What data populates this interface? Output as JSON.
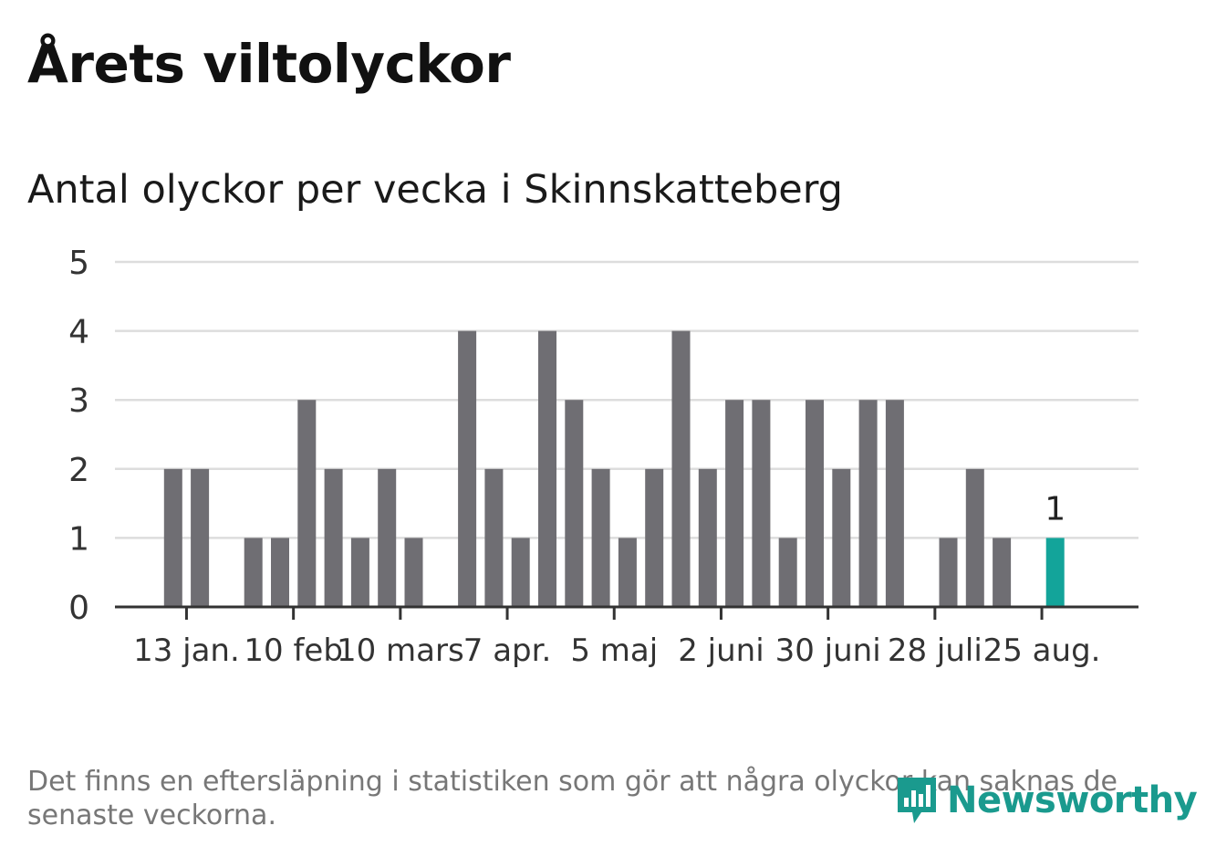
{
  "title": "Årets viltolyckor",
  "subtitle": "Antal olyckor per vecka i Skinnskatteberg",
  "footnote": "Det finns en eftersläpning i statistiken som gör att några olyckor kan saknas de senaste veckorna.",
  "logo_text": "Newsworthy",
  "colors": {
    "bar": "#6f6e73",
    "highlight": "#13a49a",
    "grid": "#dddddd",
    "axis": "#333333",
    "logo": "#1a9a8e"
  },
  "chart_data": {
    "type": "bar",
    "xlabel": "",
    "ylabel": "",
    "ylim": [
      0,
      5
    ],
    "yticks": [
      0,
      1,
      2,
      3,
      4,
      5
    ],
    "grid": true,
    "legend": "none",
    "weeks": [
      1,
      2,
      3,
      4,
      5,
      6,
      7,
      8,
      9,
      10,
      11,
      12,
      13,
      14,
      15,
      16,
      17,
      18,
      19,
      20,
      21,
      22,
      23,
      24,
      25,
      26,
      27,
      28,
      29,
      30,
      31,
      32,
      33,
      34,
      35,
      36,
      37
    ],
    "values": [
      0,
      2,
      2,
      0,
      1,
      1,
      3,
      2,
      1,
      2,
      1,
      0,
      4,
      2,
      1,
      4,
      3,
      2,
      1,
      2,
      4,
      2,
      3,
      3,
      1,
      3,
      2,
      3,
      3,
      0,
      1,
      2,
      1,
      0,
      1,
      0,
      0
    ],
    "highlight_week": 35,
    "highlight_label": "1",
    "tick_labels": [
      "13 jan.",
      "10 feb",
      "10 mars",
      "7 apr.",
      "5 maj",
      "2 juni",
      "30 juni",
      "28 juli",
      "25 aug."
    ],
    "tick_weeks": [
      2.5,
      6.5,
      10.5,
      14.5,
      18.5,
      22.5,
      26.5,
      30.5,
      34.5
    ]
  }
}
